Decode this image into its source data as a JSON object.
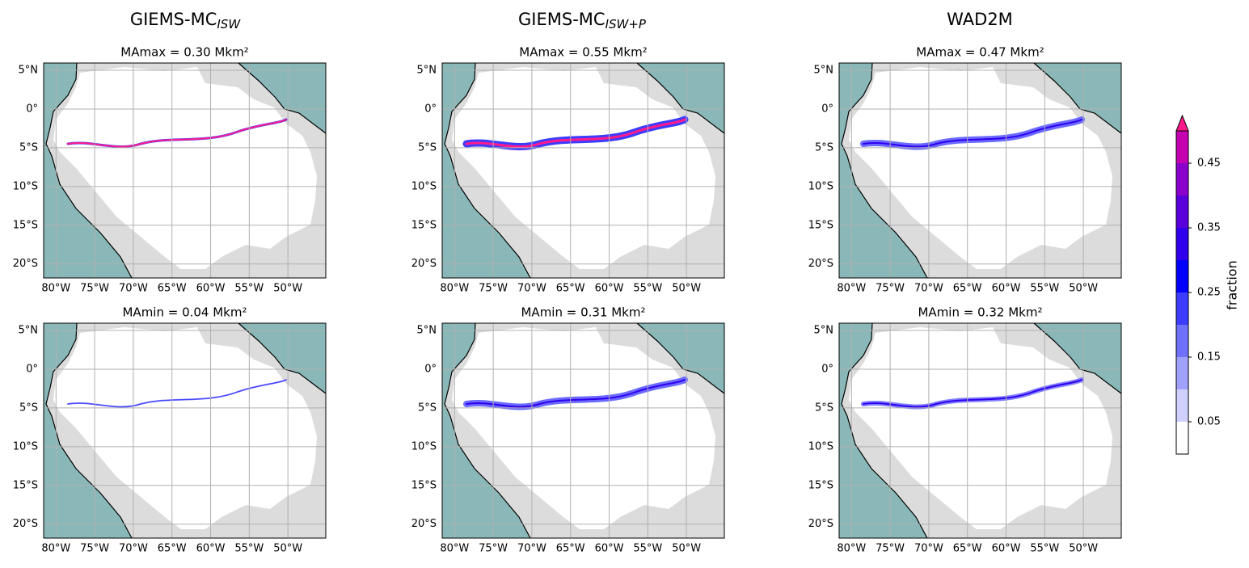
{
  "columns": [
    {
      "title": "GIEMS-MC",
      "subscript": "ISW"
    },
    {
      "title": "GIEMS-MC",
      "subscript": "ISW+P"
    },
    {
      "title": "WAD2M"
    }
  ],
  "panels": [
    [
      {
        "title": "MAmax = 0.30 Mkm²"
      },
      {
        "title": "MAmax = 0.55 Mkm²"
      },
      {
        "title": "MAmax = 0.47 Mkm²"
      }
    ],
    [
      {
        "title": "MAmin = 0.04 Mkm²"
      },
      {
        "title": "MAmin = 0.31 Mkm²"
      },
      {
        "title": "MAmin = 0.32 Mkm²"
      }
    ]
  ],
  "xlim": [
    -81.6,
    -45.1
  ],
  "ylim": [
    -21.8,
    5.94
  ],
  "xticks": [
    {
      "value": -80,
      "label": "80°W"
    },
    {
      "value": -75,
      "label": "75°W"
    },
    {
      "value": -70,
      "label": "70°W"
    },
    {
      "value": -65,
      "label": "65°W"
    },
    {
      "value": -60,
      "label": "60°W"
    },
    {
      "value": -55,
      "label": "55°W"
    },
    {
      "value": -50,
      "label": "50°W"
    }
  ],
  "yticks": [
    {
      "value": 5,
      "label": "5°N"
    },
    {
      "value": 0,
      "label": "0°"
    },
    {
      "value": -5,
      "label": "5°S"
    },
    {
      "value": -10,
      "label": "10°S"
    },
    {
      "value": -15,
      "label": "15°S"
    },
    {
      "value": -20,
      "label": "20°S"
    }
  ],
  "grid": true,
  "colorbar": {
    "label": "fraction",
    "levels": [
      0,
      0.05,
      0.1,
      0.15,
      0.2,
      0.25,
      0.3,
      0.35,
      0.4,
      0.45,
      0.5
    ],
    "colors": [
      "#ffffff",
      "#d0d0ff",
      "#a0a0ff",
      "#7070ff",
      "#3c3cff",
      "#0000ff",
      "#3000ee",
      "#5a00dc",
      "#8a00cc",
      "#c400b0"
    ],
    "extend_color": "#ff1a8c",
    "ticks": [
      0.05,
      0.15,
      0.25,
      0.35,
      0.45
    ]
  }
}
